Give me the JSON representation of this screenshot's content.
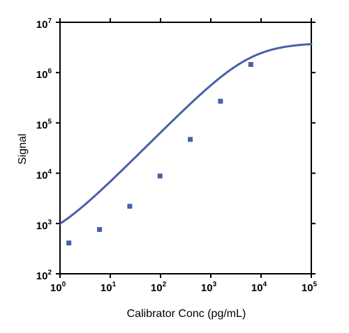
{
  "chart_data": {
    "type": "scatter",
    "xlabel": "Calibrator Conc (pg/mL)",
    "ylabel": "Signal",
    "x_scale": "log",
    "y_scale": "log",
    "xlim": [
      1,
      100000
    ],
    "ylim": [
      100,
      10000000
    ],
    "grid": false,
    "x_ticks": [
      {
        "base": "10",
        "exp": "0",
        "value": 1
      },
      {
        "base": "10",
        "exp": "1",
        "value": 10
      },
      {
        "base": "10",
        "exp": "2",
        "value": 100
      },
      {
        "base": "10",
        "exp": "3",
        "value": 1000
      },
      {
        "base": "10",
        "exp": "4",
        "value": 10000
      },
      {
        "base": "10",
        "exp": "5",
        "value": 100000
      }
    ],
    "y_ticks": [
      {
        "base": "10",
        "exp": "2",
        "value": 100
      },
      {
        "base": "10",
        "exp": "3",
        "value": 1000
      },
      {
        "base": "10",
        "exp": "4",
        "value": 10000
      },
      {
        "base": "10",
        "exp": "5",
        "value": 100000
      },
      {
        "base": "10",
        "exp": "6",
        "value": 1000000
      },
      {
        "base": "10",
        "exp": "7",
        "value": 10000000
      }
    ],
    "series": [
      {
        "marker": "square",
        "color": "#4a5fa8",
        "points": [
          {
            "x": 1.5,
            "y": 410
          },
          {
            "x": 6.1,
            "y": 760
          },
          {
            "x": 24.4,
            "y": 2200
          },
          {
            "x": 97.7,
            "y": 8800
          },
          {
            "x": 390,
            "y": 47000
          },
          {
            "x": 1560,
            "y": 270000
          },
          {
            "x": 6250,
            "y": 1450000
          }
        ]
      },
      {
        "marker": "none",
        "line": true,
        "color": "#4a5fa8",
        "fit": {
          "model": "4PL",
          "bottom": 340,
          "top": 3900000,
          "ec50": 6000,
          "hill": 1.0
        }
      }
    ]
  }
}
